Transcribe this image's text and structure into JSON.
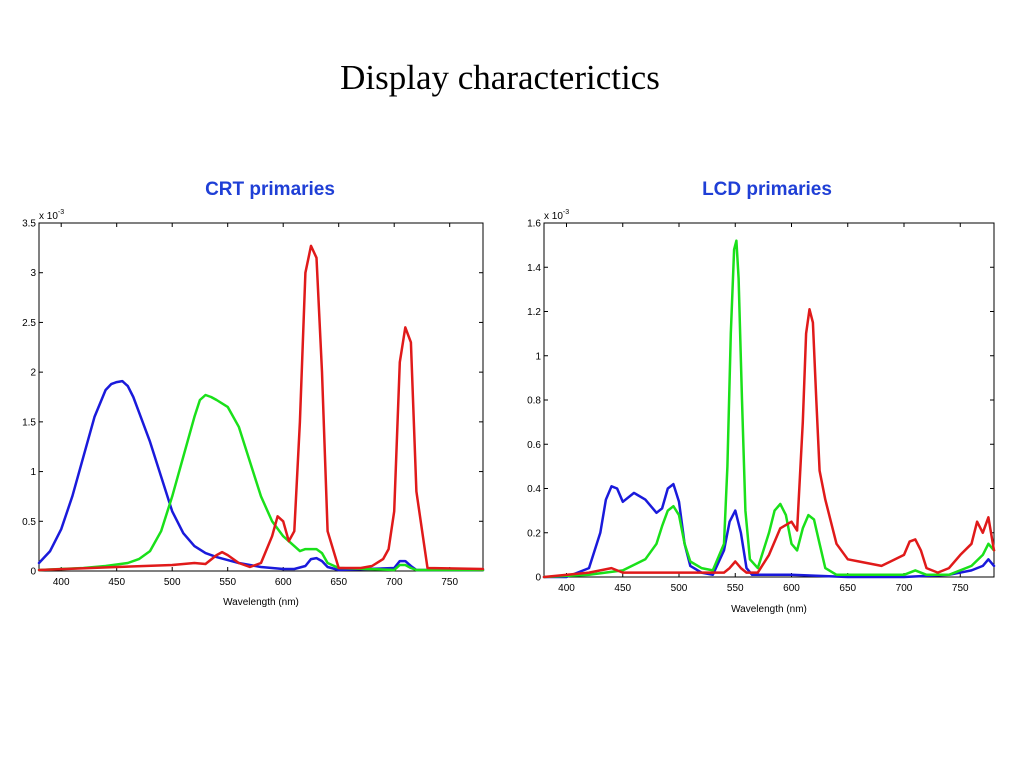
{
  "slide": {
    "title": "Display characterictics"
  },
  "chart_data": [
    {
      "type": "line",
      "title": "CRT primaries",
      "xlabel": "Wavelength (nm)",
      "ylabel": "",
      "exponent_label": "x 10",
      "exponent_power": "-3",
      "xlim": [
        380,
        780
      ],
      "ylim": [
        0,
        3.5
      ],
      "xticks": [
        400,
        450,
        500,
        550,
        600,
        650,
        700,
        750
      ],
      "yticks": [
        0,
        0.5,
        1,
        1.5,
        2,
        2.5,
        3,
        3.5
      ],
      "ytick_labels": [
        "0",
        "0.5",
        "1",
        "1.5",
        "2",
        "2.5",
        "3",
        "3.5"
      ],
      "grid": false,
      "series": [
        {
          "color": "#1a1adb",
          "x": [
            380,
            390,
            400,
            410,
            420,
            430,
            440,
            445,
            450,
            455,
            460,
            465,
            470,
            480,
            490,
            500,
            510,
            520,
            530,
            540,
            550,
            560,
            570,
            580,
            590,
            600,
            610,
            620,
            625,
            630,
            635,
            640,
            650,
            700,
            705,
            710,
            715,
            720,
            780
          ],
          "y": [
            0.08,
            0.2,
            0.42,
            0.75,
            1.15,
            1.55,
            1.82,
            1.88,
            1.9,
            1.91,
            1.86,
            1.75,
            1.6,
            1.3,
            0.95,
            0.6,
            0.38,
            0.25,
            0.18,
            0.14,
            0.11,
            0.08,
            0.06,
            0.04,
            0.03,
            0.02,
            0.02,
            0.05,
            0.12,
            0.13,
            0.1,
            0.04,
            0.01,
            0.03,
            0.1,
            0.1,
            0.05,
            0.01,
            0.01
          ]
        },
        {
          "color": "#1ae01a",
          "x": [
            380,
            400,
            420,
            440,
            460,
            470,
            480,
            490,
            500,
            510,
            520,
            525,
            530,
            535,
            540,
            550,
            560,
            570,
            580,
            590,
            600,
            610,
            615,
            620,
            625,
            630,
            635,
            640,
            650,
            700,
            705,
            710,
            715,
            720,
            780
          ],
          "y": [
            0.01,
            0.02,
            0.03,
            0.05,
            0.08,
            0.12,
            0.2,
            0.4,
            0.75,
            1.15,
            1.55,
            1.72,
            1.77,
            1.75,
            1.72,
            1.65,
            1.45,
            1.1,
            0.75,
            0.5,
            0.35,
            0.25,
            0.2,
            0.22,
            0.22,
            0.22,
            0.18,
            0.08,
            0.03,
            0.01,
            0.06,
            0.06,
            0.03,
            0.01,
            0.01
          ]
        },
        {
          "color": "#e01a1a",
          "x": [
            380,
            450,
            500,
            520,
            530,
            540,
            545,
            550,
            560,
            570,
            580,
            590,
            595,
            600,
            605,
            610,
            615,
            620,
            625,
            630,
            635,
            640,
            650,
            660,
            670,
            680,
            690,
            695,
            700,
            705,
            710,
            715,
            720,
            730,
            780
          ],
          "y": [
            0.01,
            0.04,
            0.06,
            0.08,
            0.07,
            0.16,
            0.19,
            0.16,
            0.08,
            0.04,
            0.08,
            0.35,
            0.55,
            0.5,
            0.3,
            0.4,
            1.5,
            3.0,
            3.27,
            3.15,
            2.0,
            0.4,
            0.03,
            0.03,
            0.03,
            0.05,
            0.12,
            0.22,
            0.6,
            2.1,
            2.45,
            2.3,
            0.8,
            0.03,
            0.02
          ]
        }
      ]
    },
    {
      "type": "line",
      "title": "LCD primaries",
      "xlabel": "Wavelength (nm)",
      "ylabel": "",
      "exponent_label": "x 10",
      "exponent_power": "-3",
      "xlim": [
        380,
        780
      ],
      "ylim": [
        0,
        1.6
      ],
      "xticks": [
        400,
        450,
        500,
        550,
        600,
        650,
        700,
        750
      ],
      "yticks": [
        0,
        0.2,
        0.4,
        0.6,
        0.8,
        1,
        1.2,
        1.4,
        1.6
      ],
      "ytick_labels": [
        "0",
        "0.2",
        "0.4",
        "0.6",
        "0.8",
        "1",
        "1.2",
        "1.4",
        "1.6"
      ],
      "grid": false,
      "series": [
        {
          "color": "#1a1adb",
          "x": [
            380,
            400,
            420,
            430,
            435,
            440,
            445,
            450,
            460,
            470,
            480,
            485,
            490,
            495,
            500,
            505,
            510,
            520,
            530,
            540,
            545,
            550,
            555,
            560,
            565,
            580,
            600,
            650,
            700,
            740,
            760,
            770,
            775,
            780
          ],
          "y": [
            0.0,
            0.0,
            0.04,
            0.2,
            0.35,
            0.41,
            0.4,
            0.34,
            0.38,
            0.35,
            0.29,
            0.31,
            0.4,
            0.42,
            0.34,
            0.15,
            0.05,
            0.02,
            0.01,
            0.12,
            0.25,
            0.3,
            0.2,
            0.04,
            0.01,
            0.01,
            0.01,
            0.0,
            0.0,
            0.01,
            0.03,
            0.05,
            0.08,
            0.05
          ]
        },
        {
          "color": "#1ae01a",
          "x": [
            380,
            420,
            450,
            470,
            480,
            485,
            490,
            495,
            500,
            505,
            510,
            520,
            530,
            540,
            543,
            546,
            549,
            551,
            553,
            556,
            559,
            563,
            570,
            580,
            585,
            590,
            595,
            600,
            605,
            610,
            615,
            620,
            625,
            630,
            640,
            700,
            710,
            720,
            740,
            760,
            770,
            775,
            780
          ],
          "y": [
            0.0,
            0.01,
            0.03,
            0.08,
            0.15,
            0.23,
            0.3,
            0.32,
            0.28,
            0.15,
            0.07,
            0.04,
            0.03,
            0.15,
            0.5,
            1.1,
            1.48,
            1.52,
            1.35,
            0.8,
            0.3,
            0.08,
            0.04,
            0.2,
            0.3,
            0.33,
            0.28,
            0.15,
            0.12,
            0.22,
            0.28,
            0.26,
            0.15,
            0.04,
            0.01,
            0.01,
            0.03,
            0.01,
            0.01,
            0.05,
            0.1,
            0.15,
            0.12
          ]
        },
        {
          "color": "#e01a1a",
          "x": [
            380,
            420,
            430,
            440,
            450,
            470,
            500,
            520,
            540,
            545,
            550,
            555,
            560,
            570,
            580,
            590,
            600,
            605,
            610,
            613,
            616,
            619,
            622,
            625,
            630,
            640,
            650,
            660,
            680,
            700,
            705,
            710,
            715,
            720,
            730,
            740,
            750,
            760,
            765,
            770,
            775,
            780
          ],
          "y": [
            0.0,
            0.02,
            0.03,
            0.04,
            0.02,
            0.02,
            0.02,
            0.02,
            0.02,
            0.04,
            0.07,
            0.04,
            0.02,
            0.02,
            0.1,
            0.22,
            0.25,
            0.21,
            0.7,
            1.1,
            1.21,
            1.15,
            0.8,
            0.48,
            0.35,
            0.15,
            0.08,
            0.07,
            0.05,
            0.1,
            0.16,
            0.17,
            0.12,
            0.04,
            0.02,
            0.04,
            0.1,
            0.15,
            0.25,
            0.2,
            0.27,
            0.12
          ]
        }
      ]
    }
  ]
}
